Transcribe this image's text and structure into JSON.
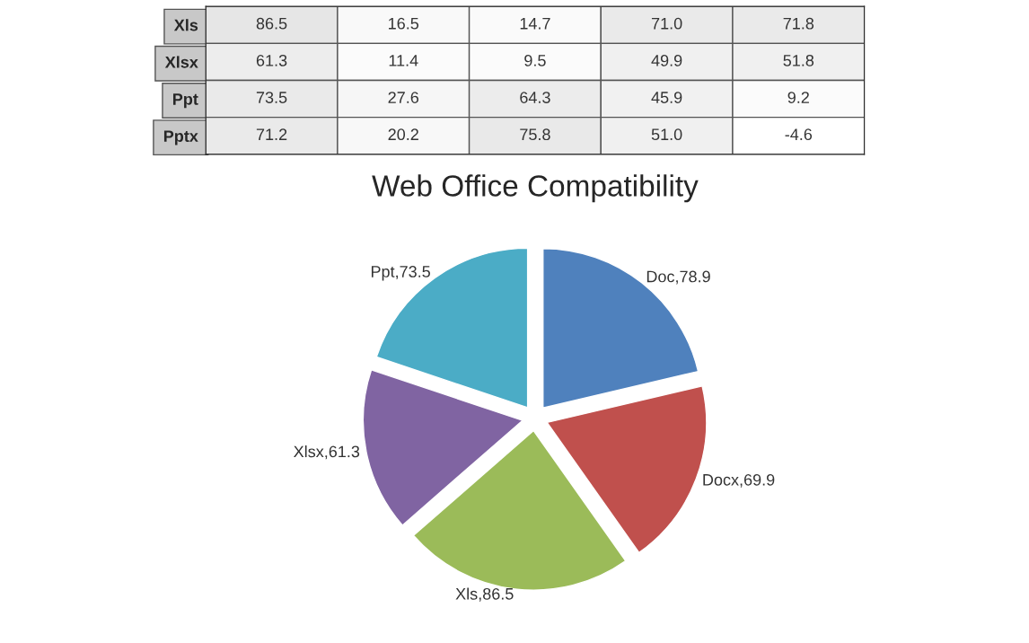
{
  "chart_data": [
    {
      "type": "heatmap",
      "categories": [
        null,
        null,
        null,
        null,
        null
      ],
      "y_categories": [
        "Xls",
        "Xlsx",
        "Ppt",
        "Pptx"
      ],
      "cells": [
        [
          86.5,
          16.5,
          14.7,
          71.0,
          71.8
        ],
        [
          61.3,
          11.4,
          9.5,
          49.9,
          51.8
        ],
        [
          73.5,
          27.6,
          64.3,
          45.9,
          9.2
        ],
        [
          71.2,
          20.2,
          75.8,
          51.0,
          -4.6
        ]
      ],
      "cell_labels": [
        [
          "86.5",
          "16.5",
          "14.7",
          "71.0",
          "71.8"
        ],
        [
          "61.3",
          "11.4",
          "9.5",
          "49.9",
          "51.8"
        ],
        [
          "73.5",
          "27.6",
          "64.3",
          "45.9",
          "9.2"
        ],
        [
          "71.2",
          "20.2",
          "75.8",
          "51.0",
          "-4.6"
        ]
      ]
    },
    {
      "type": "pie",
      "title": "Web Office Compatibility",
      "categories": [
        "Doc",
        "Docx",
        "Xls",
        "Xlsx",
        "Ppt"
      ],
      "values": [
        78.9,
        69.9,
        86.5,
        61.3,
        73.5
      ],
      "value_labels": [
        ",78.9",
        ",69.9",
        ",86.5",
        ",61.3",
        ",73.5"
      ],
      "colors": [
        "#4f81bd",
        "#c0504d",
        "#9bbb59",
        "#8064a2",
        "#4bacc6"
      ]
    }
  ]
}
